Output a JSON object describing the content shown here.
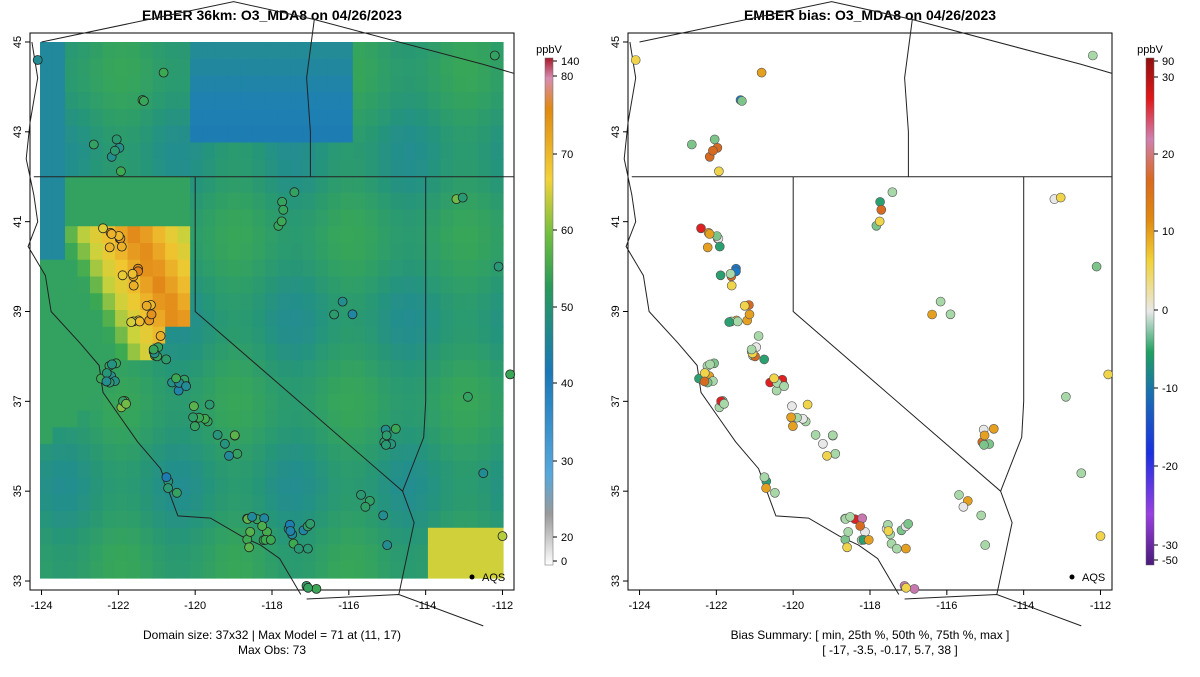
{
  "left_panel": {
    "title": "EMBER 36km: O3_MDA8 on 04/26/2023",
    "colorbar_unit": "ppbV",
    "colorbar_ticks": [
      "140",
      "80",
      "70",
      "60",
      "50",
      "40",
      "30",
      "20",
      "0"
    ],
    "footer_line1": "Domain size: 37x32 | Max Model = 71 at (11, 17)",
    "footer_line2": "Max Obs: 73",
    "aqs_label": "AQS"
  },
  "right_panel": {
    "title": "EMBER bias: O3_MDA8 on 04/26/2023",
    "colorbar_unit": "ppbV",
    "colorbar_ticks": [
      "90",
      "30",
      "20",
      "10",
      "0",
      "-10",
      "-20",
      "-30",
      "-50"
    ],
    "footer_line1": "Bias Summary: [ min, 25th %, 50th %, 75th %, max ]",
    "footer_line2": "[ -17,   -3.5,   -0.17,   5.7,   38 ]",
    "aqs_label": "AQS"
  },
  "axes": {
    "x_ticks": [
      "-124",
      "-122",
      "-120",
      "-118",
      "-116",
      "-114",
      "-112"
    ],
    "y_ticks": [
      "33",
      "35",
      "37",
      "39",
      "41",
      "43",
      "45"
    ],
    "lon_range": [
      -124.3,
      -111.7
    ],
    "lat_range": [
      32.8,
      45.2
    ]
  },
  "colors": {
    "model_high": "#e08a10",
    "model_mid": "#2e9e60",
    "model_low": "#1f7fb0",
    "bias_positive": "#e02020",
    "bias_negative": "#10a050"
  }
}
